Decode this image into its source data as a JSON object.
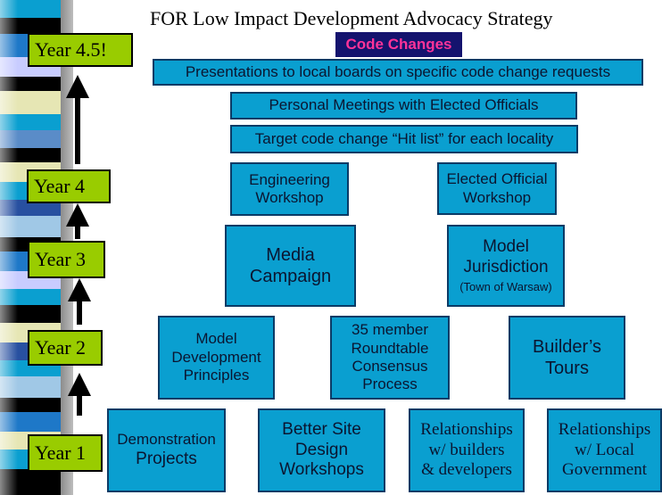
{
  "title": "FOR Low Impact Development Advocacy Strategy",
  "header_badge": "Code Changes",
  "colors": {
    "box_fill": "#0a9fd0",
    "box_border": "#0b3b66",
    "year_fill": "#99cc00",
    "badge_bg": "#14136e",
    "badge_text": "#ff3399"
  },
  "years": {
    "y45": "Year 4.5!",
    "y4": "Year 4",
    "y3": "Year 3",
    "y2": "Year 2",
    "y1": "Year 1"
  },
  "code_changes": {
    "presentations": "Presentations to local boards on specific code change requests",
    "meetings": "Personal Meetings with Elected Officials",
    "hitlist": "Target code change “Hit list” for each locality"
  },
  "year4": {
    "engineering": [
      "Engineering",
      "Workshop"
    ],
    "elected": [
      "Elected Official",
      "Workshop"
    ]
  },
  "year3": {
    "media": [
      "Media",
      "Campaign"
    ],
    "model": [
      "Model",
      "Jurisdiction"
    ],
    "model_sub": "(Town of Warsaw)"
  },
  "year2": {
    "principles": [
      "Model",
      "Development",
      "Principles"
    ],
    "roundtable": [
      "35 member",
      "Roundtable",
      "Consensus",
      "Process"
    ],
    "tours": [
      "Builder’s",
      "Tours"
    ]
  },
  "year1": {
    "demo": [
      "Demonstration",
      "Projects"
    ],
    "bsd": [
      "Better Site",
      "Design",
      "Workshops"
    ],
    "rel_builders": [
      "Relationships",
      "w/ builders",
      "& developers"
    ],
    "rel_gov": [
      "Relationships",
      "w/ Local",
      "Government"
    ]
  }
}
